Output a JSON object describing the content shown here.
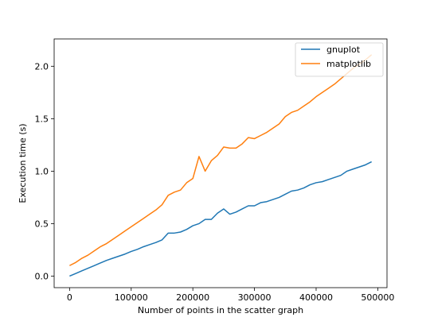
{
  "chart_data": {
    "type": "line",
    "title": "",
    "xlabel": "Number of points in the scatter graph",
    "ylabel": "Execution time (s)",
    "xlim": [
      -25000,
      515000
    ],
    "ylim": [
      -0.11,
      2.26
    ],
    "xticks": [
      0,
      100000,
      200000,
      300000,
      400000,
      500000
    ],
    "xtick_labels": [
      "0",
      "100000",
      "200000",
      "300000",
      "400000",
      "500000"
    ],
    "yticks": [
      0.0,
      0.5,
      1.0,
      1.5,
      2.0
    ],
    "ytick_labels": [
      "0.0",
      "0.5",
      "1.0",
      "1.5",
      "2.0"
    ],
    "grid": false,
    "legend_position": "top-right",
    "series": [
      {
        "name": "gnuplot",
        "color": "#1f77b4",
        "x": [
          0,
          10000,
          20000,
          30000,
          40000,
          50000,
          60000,
          70000,
          80000,
          90000,
          100000,
          110000,
          120000,
          130000,
          140000,
          150000,
          160000,
          170000,
          180000,
          190000,
          200000,
          210000,
          220000,
          230000,
          240000,
          250000,
          260000,
          270000,
          280000,
          290000,
          300000,
          310000,
          320000,
          330000,
          340000,
          350000,
          360000,
          370000,
          380000,
          390000,
          400000,
          410000,
          420000,
          430000,
          440000,
          450000,
          460000,
          470000,
          480000,
          490000
        ],
        "y": [
          0.0,
          0.025,
          0.05,
          0.075,
          0.1,
          0.125,
          0.15,
          0.17,
          0.19,
          0.21,
          0.235,
          0.255,
          0.28,
          0.3,
          0.32,
          0.345,
          0.41,
          0.41,
          0.42,
          0.445,
          0.48,
          0.5,
          0.54,
          0.54,
          0.6,
          0.64,
          0.59,
          0.61,
          0.64,
          0.67,
          0.67,
          0.7,
          0.71,
          0.73,
          0.75,
          0.78,
          0.81,
          0.82,
          0.84,
          0.87,
          0.89,
          0.9,
          0.92,
          0.94,
          0.96,
          1.0,
          1.02,
          1.04,
          1.06,
          1.09
        ]
      },
      {
        "name": "matplotlib",
        "color": "#ff7f0e",
        "x": [
          0,
          10000,
          20000,
          30000,
          40000,
          50000,
          60000,
          70000,
          80000,
          90000,
          100000,
          110000,
          120000,
          130000,
          140000,
          150000,
          160000,
          170000,
          180000,
          190000,
          200000,
          210000,
          220000,
          230000,
          240000,
          250000,
          260000,
          270000,
          280000,
          290000,
          300000,
          310000,
          320000,
          330000,
          340000,
          350000,
          360000,
          370000,
          380000,
          390000,
          400000,
          410000,
          420000,
          430000,
          440000,
          450000,
          460000,
          470000,
          480000,
          490000
        ],
        "y": [
          0.1,
          0.13,
          0.17,
          0.2,
          0.24,
          0.28,
          0.31,
          0.35,
          0.39,
          0.43,
          0.47,
          0.51,
          0.55,
          0.59,
          0.63,
          0.68,
          0.77,
          0.8,
          0.82,
          0.89,
          0.93,
          1.14,
          1.0,
          1.1,
          1.15,
          1.23,
          1.22,
          1.22,
          1.26,
          1.32,
          1.31,
          1.34,
          1.37,
          1.41,
          1.45,
          1.52,
          1.56,
          1.58,
          1.62,
          1.66,
          1.71,
          1.75,
          1.79,
          1.83,
          1.88,
          1.93,
          1.98,
          2.02,
          2.06,
          2.11
        ]
      }
    ]
  }
}
